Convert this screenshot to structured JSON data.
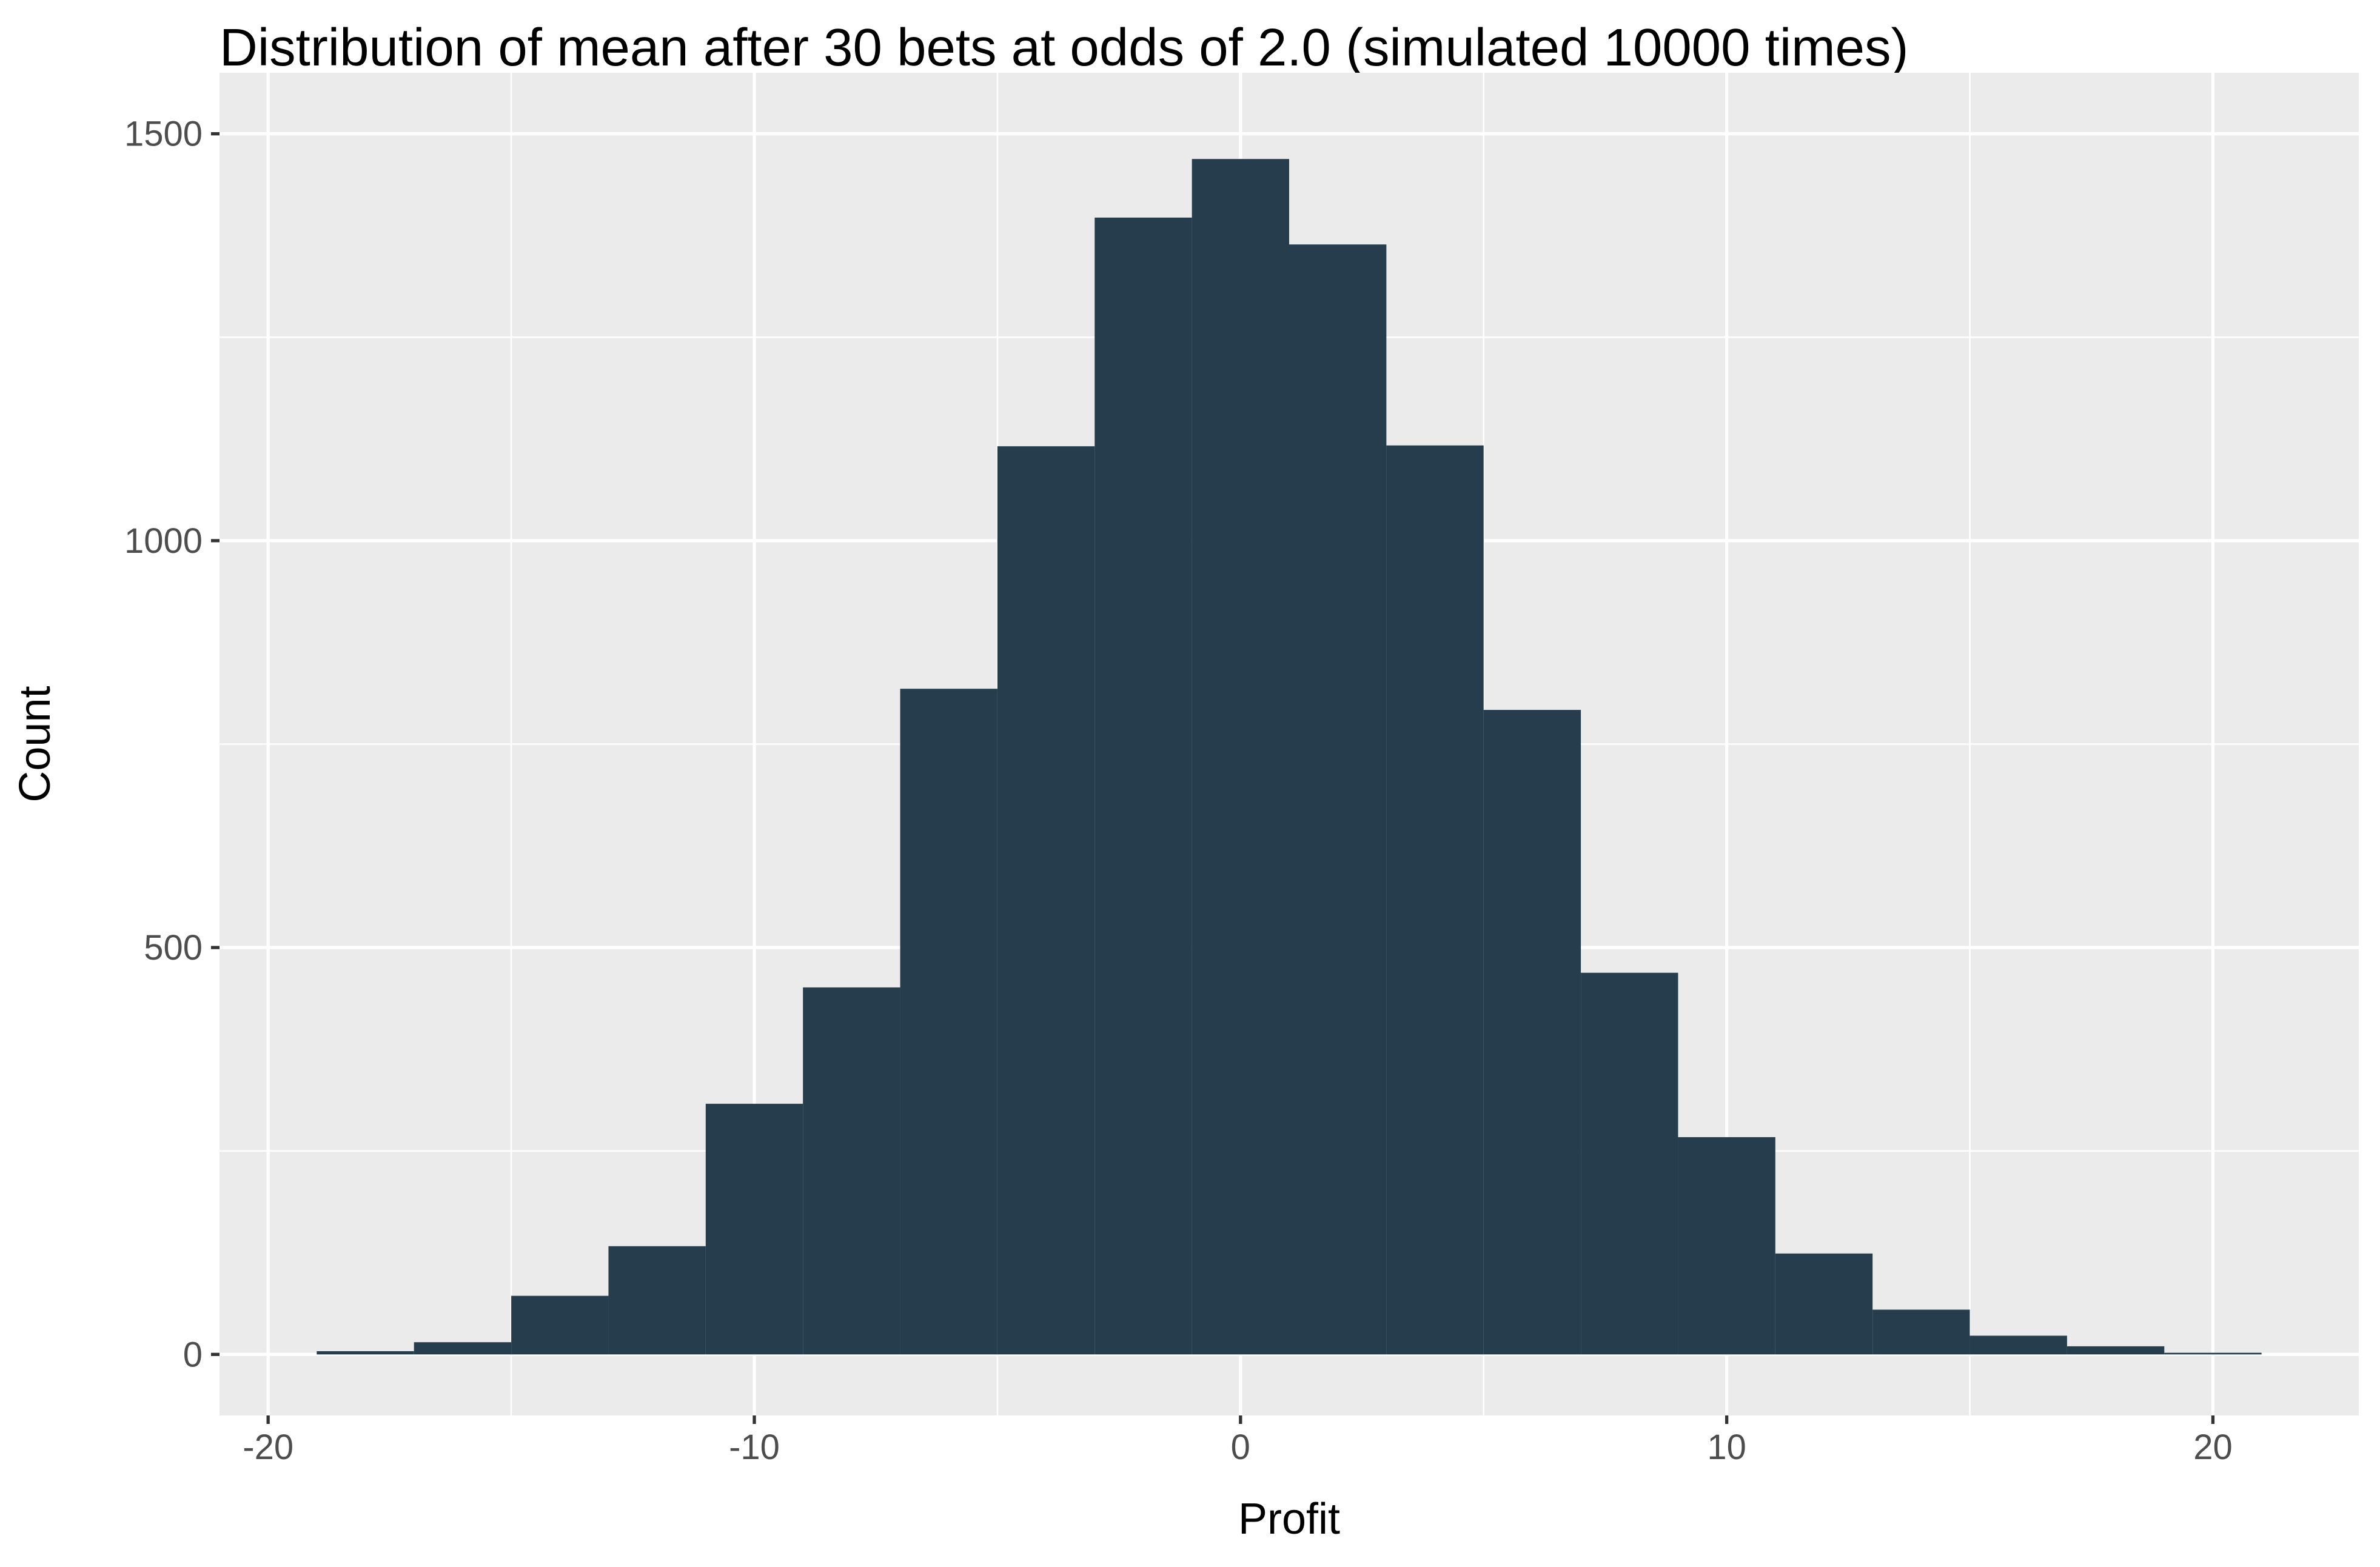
{
  "chart_data": {
    "type": "bar",
    "title": "Distribution of mean after 30 bets at odds of 2.0 (simulated 10000 times)",
    "xlabel": "Profit",
    "ylabel": "Count",
    "xlim": [
      -21,
      23
    ],
    "ylim": [
      -75,
      1575
    ],
    "x_ticks": [
      -20,
      -10,
      0,
      10,
      20
    ],
    "x_tick_labels": [
      "-20",
      "-10",
      "0",
      "10",
      "20"
    ],
    "y_ticks": [
      0,
      500,
      1000,
      1500
    ],
    "y_tick_labels": [
      "0",
      "500",
      "1000",
      "1500"
    ],
    "x_minor_ticks": [
      -15,
      -5,
      5,
      15
    ],
    "y_minor_ticks": [
      250,
      750,
      1250
    ],
    "bin_width": 2,
    "bin_centers": [
      -18,
      -16,
      -14,
      -12,
      -10,
      -8,
      -6,
      -4,
      -2,
      0,
      2,
      4,
      6,
      8,
      10,
      12,
      14,
      16,
      18,
      20
    ],
    "values": [
      4,
      15,
      72,
      133,
      308,
      451,
      818,
      1116,
      1397,
      1469,
      1364,
      1117,
      792,
      469,
      267,
      124,
      55,
      23,
      10,
      2
    ],
    "grid": true,
    "colors": {
      "panel_background": "#EBEBEB",
      "grid_line": "#FFFFFF",
      "bar_fill": "#253D4D",
      "tick_label": "#4D4D4D",
      "axis_tick": "#333333",
      "text": "#000000"
    }
  }
}
